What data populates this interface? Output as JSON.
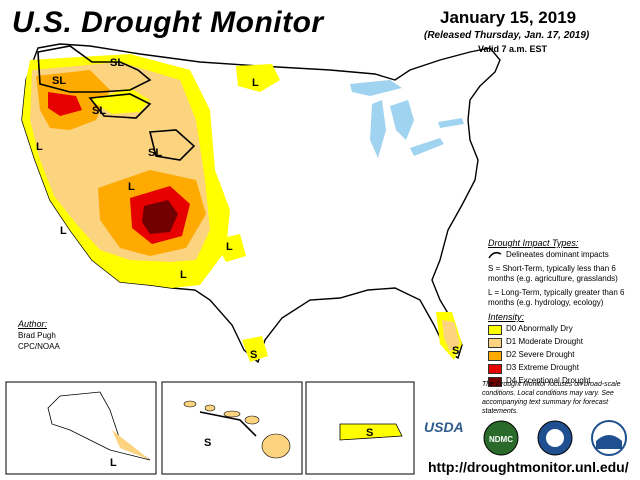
{
  "title": "U.S. Drought Monitor",
  "date": "January 15, 2019",
  "released": "(Released Thursday, Jan. 17, 2019)",
  "valid": "Valid 7 a.m. EST",
  "impact_types": {
    "header": "Drought Impact Types:",
    "delineates": "Delineates dominant impacts",
    "short_term": "S = Short-Term, typically less than 6 months (e.g. agriculture, grasslands)",
    "long_term": "L = Long-Term, typically greater than 6 months (e.g. hydrology, ecology)"
  },
  "intensity": {
    "header": "Intensity:",
    "items": [
      {
        "label": "D0 Abnormally Dry",
        "color": "#ffff00"
      },
      {
        "label": "D1 Moderate Drought",
        "color": "#fcd37f"
      },
      {
        "label": "D2 Severe Drought",
        "color": "#ffaa00"
      },
      {
        "label": "D3 Extreme Drought",
        "color": "#e60000"
      },
      {
        "label": "D4 Exceptional Drought",
        "color": "#730000"
      }
    ]
  },
  "author": {
    "header": "Author:",
    "name": "Brad Pugh",
    "org": "CPC/NOAA"
  },
  "note": "The Drought Monitor focuses on broad-scale conditions. Local conditions may vary. See accompanying text summary for forecast statements.",
  "url": "http://droughtmonitor.unl.edu/",
  "logos": {
    "usda": "USDA",
    "ndmc": "NDMC"
  },
  "map_labels": {
    "S": "S",
    "L": "L",
    "SL": "SL"
  }
}
